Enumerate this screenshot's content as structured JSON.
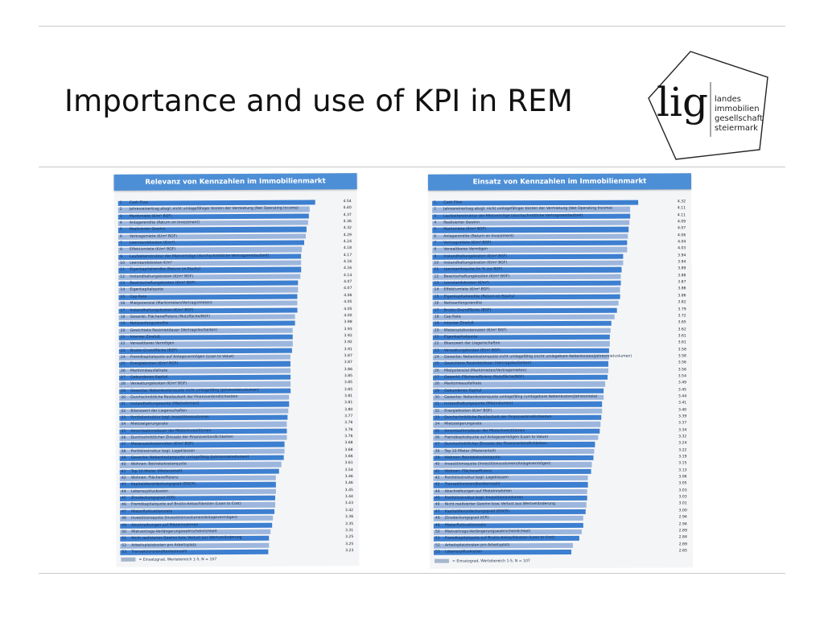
{
  "slide": {
    "title": "Importance and use of KPI in REM"
  },
  "logo": {
    "mark": "lig",
    "lines": [
      "landes",
      "immobilien",
      "gesellschaft",
      "steiermark"
    ]
  },
  "colors": {
    "bar_dark": "#3d7fd0",
    "bar_light": "#9cb6dd",
    "header": "#4d8fd6"
  },
  "chart_data": [
    {
      "type": "bar",
      "title": "Relevanz von Kennzahlen im Immobilienmarkt",
      "legend": "= Einsatzgrad, Wertebereich 1-5, N = 107",
      "xlim": [
        1,
        5
      ],
      "ranks": [
        "1",
        "2",
        "3",
        "4",
        "5",
        "6",
        "7",
        "8",
        "9",
        "10",
        "11",
        "12",
        "13",
        "14",
        "15",
        "16",
        "17",
        "18",
        "19",
        "20",
        "21",
        "22",
        "23",
        "24",
        "25",
        "26",
        "27",
        "28",
        "29",
        "30",
        "31",
        "32",
        "33",
        "34",
        "35",
        "36",
        "37",
        "38",
        "39",
        "40",
        "41",
        "42",
        "43",
        "44",
        "45",
        "46",
        "47",
        "48",
        "49",
        "50",
        "51",
        "52",
        "53"
      ],
      "categories": [
        "Cash Flow",
        "Jahresreinertrag abzgl. nicht umlagefähiger Kosten der Vermietung (Net Operating Income)",
        "Marktmiete (€/m² BGF)",
        "Anlagerendite (Return on Investment)",
        "Realisierter Gewinn",
        "Vertragsmiete (€/m² BGF)",
        "Leerstandskosten (€/m²)",
        "Effektivmiete (€/m² BGF)",
        "Laufzeitenstruktur der Mietverträge (durchschnittliche Vertragsrestlaufzeit)",
        "Leerstandskosten €/m²",
        "Eigenkapitalrendite (Return on Equity)",
        "Instandhaltungskosten (€/m² BGF)",
        "Bewirtschaftungskosten (€/m² BGF)",
        "Eigenkapitalquote",
        "Cap Rate",
        "Mietpotenzial (Marktmieten/Vertragsmieten)",
        "Instandhaltungskosten (€/m² BGF)",
        "Gewerbl. Flächeneffizienz (Nutzfläche/BGF)",
        "Nettoanfangsrendite",
        "Gewichtete Restmietdauer (Vertragslaufzeiten)",
        "Interner Zinsfuß",
        "Verwaltbares Vermögen",
        "Brutto-Grundfläche (BGF)",
        "Fremdkapitalquote auf Anlagevermögen (Loan to Value)",
        "Energiekosten (€/m² BGF)",
        "Marktmieausfallrate",
        "Gebundenes Kapital",
        "Verwaltungskosten (€/m² BGF)",
        "Gewerbe: Nebenkostenquote nicht umlagefähig (Jahresmietvolumen)",
        "Durchschnittliche Restlaufzeit der Finanzverbindlichkeiten",
        "Instandhaltungsquote (Mietvolumen)",
        "Bilanzwert der Liegenschaften",
        "Portfoliostruktur bzgl. Investitionsvolumen",
        "Mietsteigerungsrate",
        "Amortisationsdauer der Mieterinvestitionen",
        "Durchschnittlicher Zinssatz der Finanzverbindlichkeiten",
        "Mietersatzkostenraten (€/m² BGF)",
        "Portfoliostruktur bzgl. Lageklassen",
        "Gewerbe: Nebenkostenquote umlagefähig (Jahresmietvolumen)",
        "Wohnen: Betriebskostenquote",
        "Top 10 Mieter (Mieteranteil)",
        "Wohnen: Flächeneffizienz",
        "Kapitaldienstdeckungsgrad (DSCR)",
        "Lebenszykluskosten",
        "Zinsdeckungsgrad (ICR)",
        "Fremdkapitalquote auf Brutto-Ankaufskosten (Loan to Cost)",
        "Mieterfluktuationsrate",
        "Investitionsquote (Investitionsvolumen/Anlagevermögen)",
        "Abschreibungen auf Mieteinnahmen",
        "Mietvertrags-Verlängerungswahrscheinlichkeit",
        "Nicht realisierter Gewinn bzw. Verlust aus Wertveränderung",
        "Arbeitsplatzkosten pro Arbeitsplatz",
        "Transaktionsrenditenkennzahl"
      ],
      "values": [
        4.54,
        4.4,
        4.37,
        4.36,
        4.32,
        4.29,
        4.24,
        4.18,
        4.17,
        4.16,
        4.16,
        4.14,
        4.07,
        4.07,
        4.06,
        4.05,
        4.05,
        4.0,
        3.98,
        3.93,
        3.92,
        3.92,
        3.91,
        3.87,
        3.87,
        3.86,
        3.85,
        3.85,
        3.85,
        3.81,
        3.81,
        3.8,
        3.77,
        3.76,
        3.76,
        3.76,
        3.68,
        3.68,
        3.66,
        3.61,
        3.54,
        3.46,
        3.46,
        3.45,
        3.44,
        3.43,
        3.42,
        3.36,
        3.35,
        3.31,
        3.25,
        3.25,
        3.23
      ]
    },
    {
      "type": "bar",
      "title": "Einsatz von Kennzahlen im Immobilienmarkt",
      "legend": "= Einsatzgrad, Wertebereich 1-5, N = 107",
      "xlim": [
        1,
        5
      ],
      "ranks": [
        "1",
        "2",
        "3",
        "4",
        "5",
        "6",
        "7",
        "8",
        "9",
        "10",
        "11",
        "12",
        "13",
        "14",
        "15",
        "16",
        "17",
        "18",
        "19",
        "20",
        "21",
        "22",
        "23",
        "24",
        "25",
        "26",
        "27",
        "28",
        "29",
        "30",
        "31",
        "32",
        "33",
        "34",
        "35",
        "36",
        "37",
        "38",
        "39",
        "40",
        "41",
        "42",
        "43",
        "44",
        "45",
        "46",
        "47",
        "48",
        "49",
        "50",
        "51",
        "52",
        "53"
      ],
      "categories": [
        "Cash Flow",
        "Jahresreinertrag abzgl. nicht umlagefähiger Kosten der Vermietung (Net Operating Income)",
        "Laufzeitenstruktur der Mietverträge (durchschnittliche Vertragsrestlaufzeit)",
        "Realisierter Gewinn",
        "Marktmiete (€/m² BGF)",
        "Anlagerendite (Return on Investment)",
        "Vertragsmiete (€/m² BGF)",
        "Verwaltbares Vermögen",
        "Instandhaltungskosten (€/m² BGF)",
        "Instandhaltungskosten (€/m² BGF)",
        "Leerstandsquote (in % zur BGF)",
        "Bewirtschaftungskosten (€/m² BGF)",
        "Leerstandskosten (€/m²)",
        "Effektivmiete (€/m² BGF)",
        "Eigenkapitalrendite (Return on Equity)",
        "Nettoanfangsrendite",
        "Brutto-Grundfläche (BGF)",
        "Cap Rate",
        "Interner Zinsfuß",
        "Mietersatzkostenraten (€/m² BGF)",
        "Eigenkapitalquote",
        "Bilanzwert der Liegenschaften",
        "Verwaltungskosten (€/m² BGF)",
        "Gewerbe: Nebenkostenquote nicht umlagefähig (nicht umlagebare Nebenkosten/Jahresmietvolumen)",
        "Gewichtete Restmietdauer (Vertragslaufzeiten)",
        "Mietpotenzial (Marktmieten/Vertragsmieten)",
        "Gewerbl. Flächeneffizienz (Nutzfläche/BGF)",
        "Marktmieausfallrate",
        "Gebundenes Kapital",
        "Gewerbe: Nebenkostenquote umlagefähig (umlagebare Nebenkosten/Jahresmiete)",
        "Instandhaltungsquote (Mietvolumen)",
        "Energiekosten (€/m² BGF)",
        "Durchschnittliche Restlaufzeit der Finanzverbindlichkeiten",
        "Mietsteigerungsrate",
        "Amortisationsdauer der Mieterinvestitionen",
        "Fremdkapitalquote auf Anlagevermögen (Loan to Value)",
        "Durchschnittlicher Zinssatz der Finanzverbindlichkeiten",
        "Top 10 Mieter (Mieteranteil)",
        "Wohnen: Betriebskostenquote",
        "Investitionsquote (Investitionsvolumen/Anlagevermögen)",
        "Wohnen: Flächeneffizienz",
        "Portfoliostruktur bzgl. Lageklassen",
        "Transaktionsrenditenkennzahl",
        "Abschreibungen auf Mieteinnahmen",
        "Portfoliostruktur bzgl. Investitionsvolumen",
        "Nicht realisierter Gewinn bzw. Verlust aus Wertveränderung",
        "Kapitaldienstdeckungsgrad (DSCR)",
        "Zinsdeckungsgrad (ICR)",
        "Mieterfluktuationsrate",
        "Mietvertrags-Verlängerungswahrscheinlichkeit",
        "Fremdkapitalquote auf Brutto-Ankaufskosten (Loan to Cost)",
        "Arbeitsplatzkosten pro Arbeitsplatz",
        "Lebenszykluskosten"
      ],
      "values": [
        4.32,
        4.11,
        4.11,
        4.09,
        4.07,
        4.06,
        4.04,
        4.03,
        3.94,
        3.94,
        3.89,
        3.88,
        3.87,
        3.86,
        3.86,
        3.82,
        3.79,
        3.72,
        3.65,
        3.62,
        3.61,
        3.61,
        3.58,
        3.58,
        3.56,
        3.56,
        3.54,
        3.49,
        3.45,
        3.44,
        3.41,
        3.4,
        3.39,
        3.37,
        3.34,
        3.32,
        3.24,
        3.22,
        3.19,
        3.15,
        3.13,
        3.06,
        3.05,
        3.03,
        3.03,
        3.01,
        3.0,
        2.94,
        2.94,
        2.89,
        2.84,
        2.69,
        2.65
      ]
    }
  ]
}
